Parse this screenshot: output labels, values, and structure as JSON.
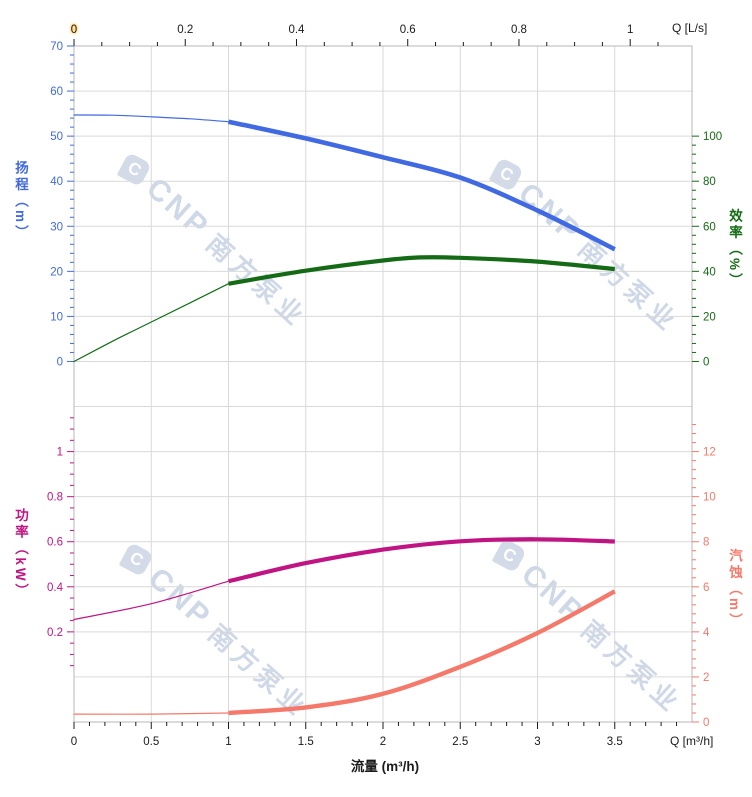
{
  "watermark": {
    "logo_letter": "C",
    "brand": "CNP",
    "company": "南方泵业"
  },
  "chart_data": {
    "type": "line",
    "title": "",
    "grid": "on",
    "legend": "none",
    "plot_border_color": "#c3c3c3",
    "grid_color": "#d9d9d9",
    "x_bottom": {
      "caption": "流量 (m³/h)",
      "unit_label": "Q [m³/h]",
      "color": "#1a1a1a",
      "min": 0,
      "max": 4.0,
      "ticks": [
        "0",
        "0.5",
        "1",
        "1.5",
        "2",
        "2.5",
        "3",
        "3.5"
      ],
      "tick_values": [
        0,
        0.5,
        1,
        1.5,
        2,
        2.5,
        3,
        3.5
      ],
      "minor_step": 0.1,
      "minor_max": 3.9
    },
    "x_top": {
      "unit_label": "Q [L/s]",
      "color": "#1a1a1a",
      "min": 0,
      "max": 1.111,
      "lps_to_m3h": 3.6,
      "ticks": [
        "0",
        "0.2",
        "0.4",
        "0.6",
        "0.8",
        "1"
      ],
      "tick_values": [
        0,
        0.2,
        0.4,
        0.6,
        0.8,
        1
      ],
      "minor_step": 0.05,
      "minor_max": 1.05
    },
    "y_axes": {
      "head": {
        "caption": "扬程（m）",
        "color": "#4169E1",
        "side": "left",
        "min": 0,
        "max": 70,
        "ticks": [
          "0",
          "10",
          "20",
          "30",
          "40",
          "50",
          "60",
          "70"
        ],
        "tick_values": [
          0,
          10,
          20,
          30,
          40,
          50,
          60,
          70
        ],
        "minor_step": 2,
        "minor_min": 0,
        "minor_max": 70
      },
      "eff": {
        "caption": "效率（%）",
        "color": "#156B15",
        "side": "right",
        "min": 0,
        "max": 100,
        "ticks": [
          "0",
          "20",
          "40",
          "60",
          "80",
          "100"
        ],
        "tick_values": [
          0,
          20,
          40,
          60,
          80,
          100
        ],
        "minor_step": 4,
        "minor_min": 0,
        "minor_max": 100
      },
      "power": {
        "caption": "功率（kW）",
        "color": "#C11483",
        "side": "left",
        "min": 0,
        "max": 1.2,
        "ticks": [
          "0.2",
          "0.4",
          "0.6",
          "0.8",
          "1"
        ],
        "tick_values": [
          0.2,
          0.4,
          0.6,
          0.8,
          1
        ],
        "minor_step": 0.05,
        "minor_min": 0.05,
        "minor_max": 1.15
      },
      "npsh": {
        "caption": "汽蚀（m）",
        "color": "#F4796B",
        "side": "right",
        "min": 0,
        "max": 13.2,
        "ticks": [
          "0",
          "2",
          "4",
          "6",
          "8",
          "10",
          "12"
        ],
        "tick_values": [
          0,
          2,
          4,
          6,
          8,
          10,
          12
        ],
        "minor_step": 0.4,
        "minor_min": 0.4,
        "minor_max": 13.2
      }
    },
    "series": [
      {
        "name": "head-thin",
        "axis": "head",
        "width": 1.2,
        "x": [
          0,
          0.25,
          0.5,
          0.75,
          1
        ],
        "values": [
          54.7,
          54.65,
          54.3,
          53.85,
          53.2
        ]
      },
      {
        "name": "head-thick",
        "axis": "head",
        "width": 4.6,
        "x": [
          1,
          1.5,
          2,
          2.5,
          3,
          3.5
        ],
        "values": [
          53.2,
          49.5,
          45.3,
          40.8,
          33.5,
          24.9
        ]
      },
      {
        "name": "eff-thin",
        "axis": "eff",
        "width": 1.2,
        "x": [
          0,
          0.25,
          0.5,
          0.75,
          1
        ],
        "values": [
          0,
          9,
          17.5,
          26,
          34.5
        ]
      },
      {
        "name": "eff-thick",
        "axis": "eff",
        "width": 4.2,
        "x": [
          1,
          1.5,
          2,
          2.25,
          2.5,
          3,
          3.5
        ],
        "values": [
          34.5,
          40.3,
          44.8,
          46.2,
          46.0,
          44.3,
          41.0
        ]
      },
      {
        "name": "power-thin",
        "axis": "power",
        "width": 1.2,
        "x": [
          0,
          0.5,
          1
        ],
        "values": [
          0.255,
          0.325,
          0.425
        ]
      },
      {
        "name": "power-thick",
        "axis": "power",
        "width": 4.2,
        "x": [
          1,
          1.5,
          2,
          2.5,
          3,
          3.5
        ],
        "values": [
          0.425,
          0.505,
          0.565,
          0.602,
          0.611,
          0.601
        ]
      },
      {
        "name": "npsh-thin",
        "axis": "npsh",
        "width": 1.2,
        "x": [
          0,
          0.5,
          1
        ],
        "values": [
          0.35,
          0.35,
          0.4
        ]
      },
      {
        "name": "npsh-thick",
        "axis": "npsh",
        "width": 4.4,
        "x": [
          1,
          1.5,
          2,
          2.5,
          3,
          3.5
        ],
        "values": [
          0.4,
          0.65,
          1.25,
          2.45,
          3.95,
          5.8
        ]
      }
    ]
  }
}
